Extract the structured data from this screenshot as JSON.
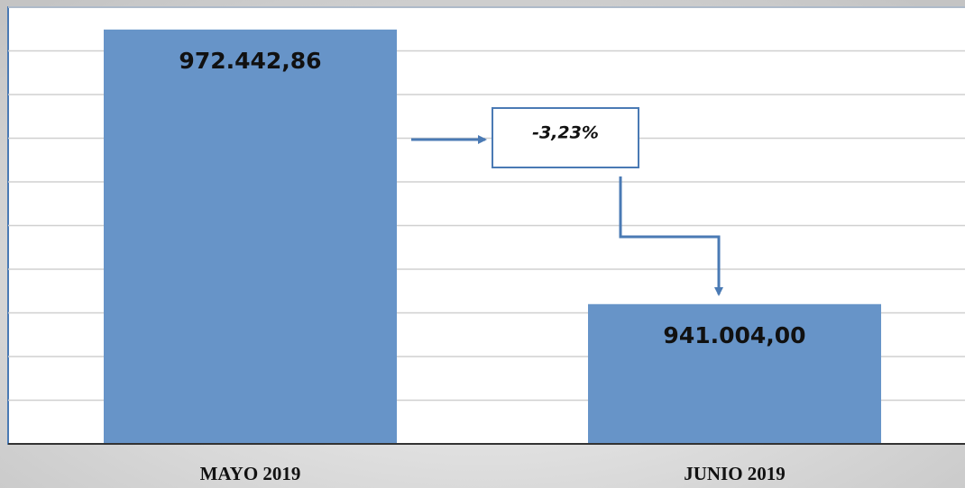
{
  "chart_data": {
    "type": "bar",
    "categories": [
      "MAYO 2019",
      "JUNIO 2019"
    ],
    "values": [
      972442.86,
      941004.0
    ],
    "value_labels": [
      "972.442,86",
      "941.004,00"
    ],
    "color": "#6794c8",
    "ylim": [
      925000,
      975000
    ],
    "yticks": [
      925000,
      930000,
      935000,
      940000,
      945000,
      950000,
      955000,
      960000,
      965000,
      970000,
      975000
    ],
    "grid": true,
    "annotation": "-3,23%"
  }
}
